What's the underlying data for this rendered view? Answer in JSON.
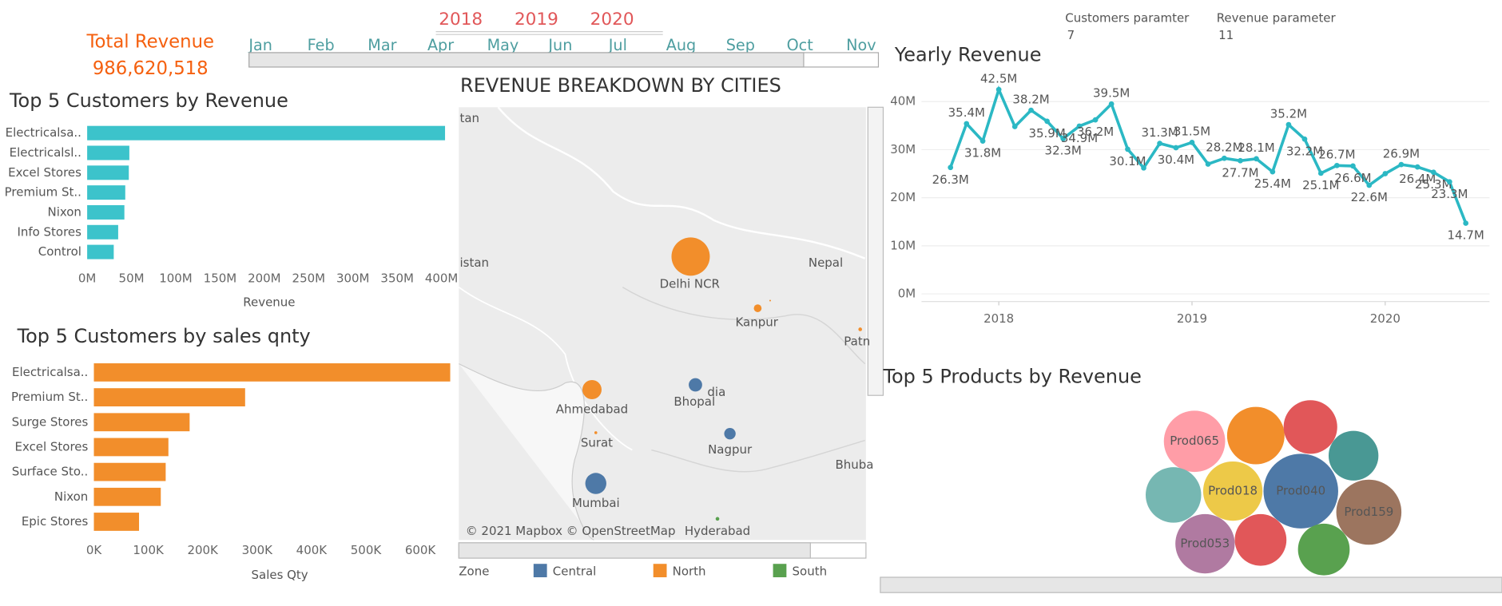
{
  "kpi": {
    "title": "Total Revenue",
    "value": "986,620,518"
  },
  "year_filter": [
    "2018",
    "2019",
    "2020"
  ],
  "month_filter": [
    "Jan",
    "Feb",
    "Mar",
    "Apr",
    "May",
    "Jun",
    "Jul",
    "Aug",
    "Sep",
    "Oct",
    "Nov"
  ],
  "parameters": [
    {
      "label": "Customers paramter",
      "value": 7
    },
    {
      "label": "Revenue parameter",
      "value": 11
    }
  ],
  "chart_data": [
    {
      "type": "hbar",
      "title": "Top 5 Customers by Revenue",
      "categories": [
        "Electricalsa..",
        "Electricalsl..",
        "Excel Stores",
        "Premium St..",
        "Nixon",
        "Info Stores",
        "Control"
      ],
      "values": [
        404000000,
        47600000,
        47000000,
        43000000,
        42000000,
        35000000,
        30000000
      ],
      "color": "#3cc3cb",
      "x_label": "Revenue",
      "xlim": [
        0,
        412000000
      ],
      "xticks": [
        {
          "value": 0,
          "label": "0M"
        },
        {
          "value": 50000000,
          "label": "50M"
        },
        {
          "value": 100000000,
          "label": "100M"
        },
        {
          "value": 150000000,
          "label": "150M"
        },
        {
          "value": 200000000,
          "label": "200M"
        },
        {
          "value": 250000000,
          "label": "250M"
        },
        {
          "value": 300000000,
          "label": "300M"
        },
        {
          "value": 350000000,
          "label": "350M"
        },
        {
          "value": 400000000,
          "label": "400M"
        }
      ]
    },
    {
      "type": "hbar",
      "title": "Top 5 Customers by sales qnty",
      "categories": [
        "Electricalsa..",
        "Premium St..",
        "Surge Stores",
        "Excel Stores",
        "Surface Sto..",
        "Nixon",
        "Epic Stores"
      ],
      "values": [
        655000,
        278000,
        176000,
        137000,
        132000,
        123000,
        83000
      ],
      "color": "#f28e2b",
      "x_label": "Sales Qty",
      "xlim": [
        0,
        655000
      ],
      "xticks": [
        {
          "value": 0,
          "label": "0K"
        },
        {
          "value": 100000,
          "label": "100K"
        },
        {
          "value": 200000,
          "label": "200K"
        },
        {
          "value": 300000,
          "label": "300K"
        },
        {
          "value": 400000,
          "label": "400K"
        },
        {
          "value": 500000,
          "label": "500K"
        },
        {
          "value": 600000,
          "label": "600K"
        }
      ]
    },
    {
      "type": "map",
      "title": "REVENUE BREAKDOWN BY CITIES",
      "categories": [
        "Delhi NCR",
        null,
        "Kanpur",
        "Patn",
        "Ahmedabad",
        "Surat",
        "Bhopal",
        "Nagpur",
        "Mumbai",
        "Hyderabad"
      ],
      "zones": [
        "North",
        "North",
        "North",
        "North",
        "North",
        "North",
        "Central",
        "Central",
        "Central",
        "South"
      ],
      "values": [
        538000000,
        1000000,
        22000000,
        5000000,
        135000000,
        3000000,
        66000000,
        48000000,
        163000000,
        5000000
      ],
      "legend": {
        "title": "Zone",
        "items": [
          {
            "name": "Central",
            "color": "#4e79a7"
          },
          {
            "name": "North",
            "color": "#f28e2b"
          },
          {
            "name": "South",
            "color": "#59a14f"
          }
        ]
      },
      "map_labels": [
        "tan",
        "istan",
        "Nepal",
        "dia",
        "Bhuba"
      ],
      "attribution": "© 2021 Mapbox © OpenStreetMap"
    },
    {
      "type": "line",
      "title": "Yearly Revenue",
      "color": "#2bb8c4",
      "grid": true,
      "x": [
        2017.75,
        2017.833,
        2017.917,
        2018,
        2018.083,
        2018.167,
        2018.25,
        2018.333,
        2018.417,
        2018.5,
        2018.583,
        2018.667,
        2018.75,
        2018.833,
        2018.917,
        2019,
        2019.083,
        2019.167,
        2019.25,
        2019.333,
        2019.417,
        2019.5,
        2019.583,
        2019.667,
        2019.75,
        2019.833,
        2019.917,
        2020,
        2020.083,
        2020.167,
        2020.25,
        2020.333,
        2020.417
      ],
      "values": [
        26300000,
        35400000,
        31800000,
        42500000,
        34800000,
        38200000,
        35900000,
        32300000,
        34900000,
        36200000,
        39500000,
        30100000,
        26200000,
        31300000,
        30400000,
        31500000,
        27000000,
        28200000,
        27700000,
        28100000,
        25400000,
        35200000,
        32200000,
        25100000,
        26700000,
        26600000,
        22600000,
        25000000,
        26900000,
        26400000,
        25300000,
        23300000,
        14700000
      ],
      "value_labels": [
        "26.3M",
        "35.4M",
        "31.8M",
        "42.5M",
        null,
        "38.2M",
        "35.9M",
        "32.3M",
        "34.9M",
        "36.2M",
        "39.5M",
        "30.1M",
        null,
        "31.3M",
        "30.4M",
        "31.5M",
        null,
        "28.2M",
        "27.7M",
        "28.1M",
        "25.4M",
        "35.2M",
        "32.2M",
        "25.1M",
        "26.7M",
        "26.6M",
        "22.6M",
        null,
        "26.9M",
        "26.4M",
        "25.3M",
        "23.3M",
        "14.7M"
      ],
      "xlim": [
        2017.6,
        2020.54
      ],
      "xticks": [
        2018,
        2019,
        2020
      ],
      "ylim": [
        -1600000,
        44200000
      ],
      "yticks": [
        {
          "value": 0,
          "label": "0M"
        },
        {
          "value": 10000000,
          "label": "10M"
        },
        {
          "value": 20000000,
          "label": "20M"
        },
        {
          "value": 30000000,
          "label": "30M"
        },
        {
          "value": 40000000,
          "label": "40M"
        }
      ]
    },
    {
      "type": "bubble",
      "title": "Top 5 Products by Revenue",
      "categories": [
        "Prod065",
        null,
        null,
        null,
        null,
        "Prod018",
        "Prod040",
        "Prod159",
        "Prod053",
        null,
        null
      ],
      "values": [
        25.6,
        22.5,
        19.6,
        16.9,
        21.0,
        24.0,
        38.0,
        28.9,
        24.0,
        18.2,
        18.2
      ],
      "colors": [
        "#ff9da7",
        "#f28e2b",
        "#e15759",
        "#499894",
        "#76b7b2",
        "#edc948",
        "#4e79a7",
        "#9c755f",
        "#b07aa1",
        "#e15759",
        "#59a14f"
      ]
    }
  ]
}
